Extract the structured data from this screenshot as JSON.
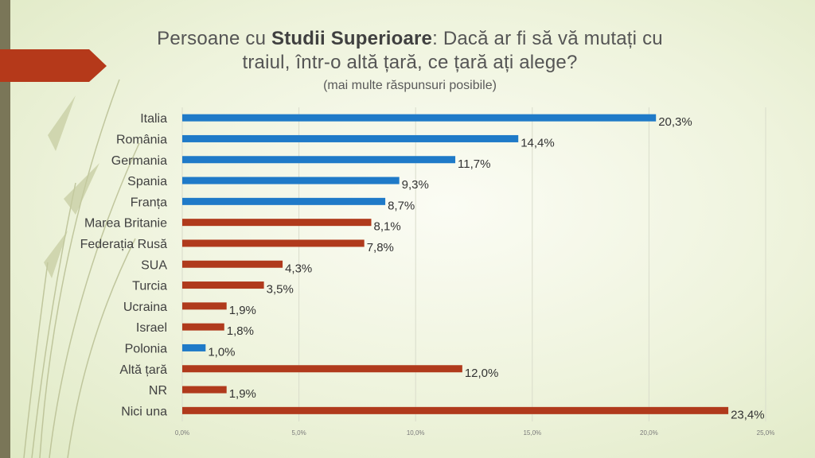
{
  "title": {
    "prefix": "Persoane cu ",
    "bold": "Studii Superioare",
    "line1_rest": ": Dacă ar fi să vă mutați cu",
    "line2": "traiul, într-o altă țară, ce țară ați alege?"
  },
  "subtitle": "(mai multe răspunsuri posibile)",
  "colors": {
    "blue": "#1f7ac8",
    "red": "#b03a1c",
    "accent": "#b5391a",
    "band": "#7a7658"
  },
  "chart_data": {
    "type": "bar",
    "orientation": "horizontal",
    "categories": [
      "Italia",
      "România",
      "Germania",
      "Spania",
      "Franța",
      "Marea Britanie",
      "Federația Rusă",
      "SUA",
      "Turcia",
      "Ucraina",
      "Israel",
      "Polonia",
      "Altă țară",
      "NR",
      "Nici una"
    ],
    "values": [
      20.3,
      14.4,
      11.7,
      9.3,
      8.7,
      8.1,
      7.8,
      4.3,
      3.5,
      1.9,
      1.8,
      1.0,
      12.0,
      1.9,
      23.4
    ],
    "value_labels": [
      "20,3%",
      "14,4%",
      "11,7%",
      "9,3%",
      "8,7%",
      "8,1%",
      "7,8%",
      "4,3%",
      "3,5%",
      "1,9%",
      "1,8%",
      "1,0%",
      "12,0%",
      "1,9%",
      "23,4%"
    ],
    "bar_colors": [
      "blue",
      "blue",
      "blue",
      "blue",
      "blue",
      "red",
      "red",
      "red",
      "red",
      "red",
      "red",
      "blue",
      "red",
      "red",
      "red"
    ],
    "xlim": [
      0,
      25
    ],
    "xticks": [
      "0,0%",
      "5,0%",
      "10,0%",
      "15,0%",
      "20,0%",
      "25,0%"
    ],
    "grid": true
  }
}
